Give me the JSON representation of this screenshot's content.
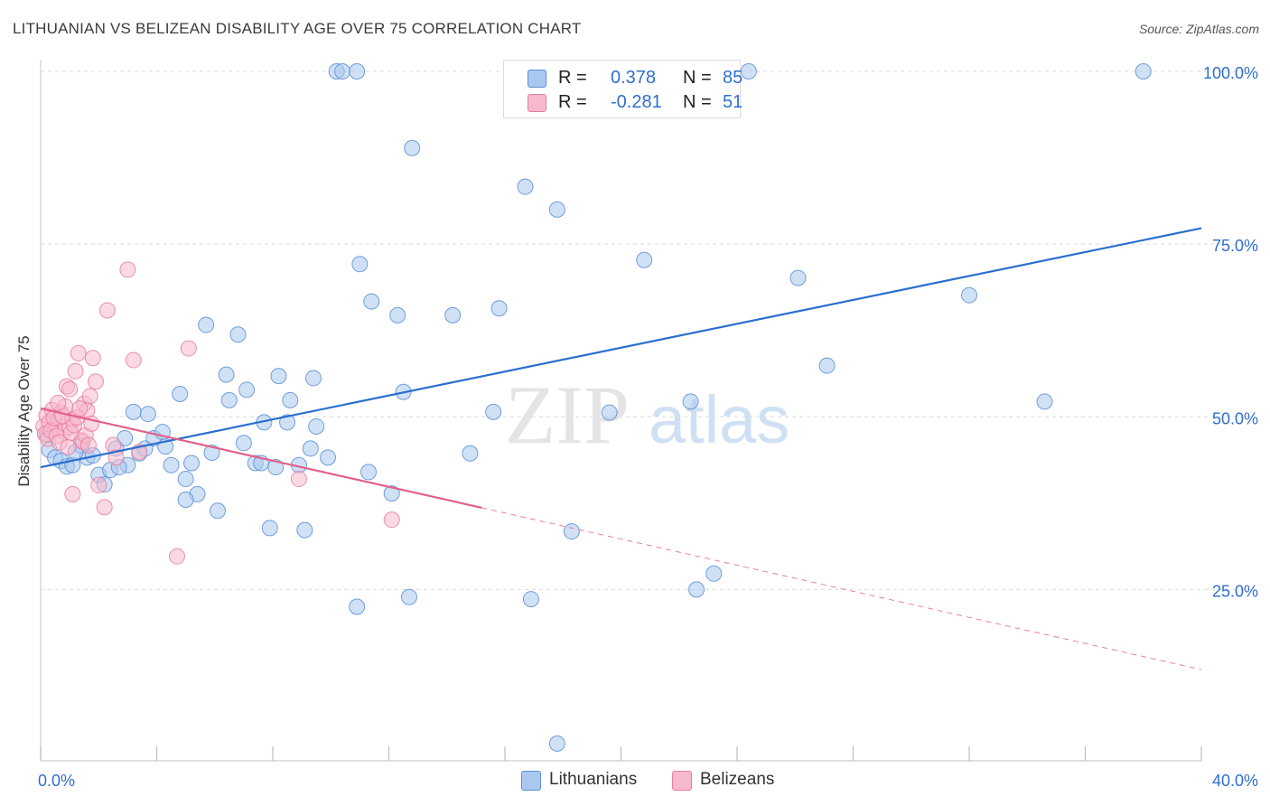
{
  "header": {
    "title": "LITHUANIAN VS BELIZEAN DISABILITY AGE OVER 75 CORRELATION CHART",
    "source": "Source: ZipAtlas.com"
  },
  "legend": {
    "rows": [
      {
        "r_label": "R =",
        "r_value": "0.378",
        "n_label": "N =",
        "n_value": "85"
      },
      {
        "r_label": "R =",
        "r_value": "-0.281",
        "n_label": "N =",
        "n_value": "51"
      }
    ]
  },
  "bottom_legend": [
    "Lithuanians",
    "Belizeans"
  ],
  "watermark": {
    "zip": "ZIP",
    "atlas": "atlas"
  },
  "colors": {
    "blue_fill": "#aac8ef",
    "blue_stroke": "#5b8fd6",
    "blue_line": "#2a6fce",
    "pink_fill": "#f7b9cc",
    "pink_stroke": "#e77ea0",
    "pink_line": "#e3608a",
    "axis_text": "#2f6fcf",
    "grid": "#dcdcdc"
  },
  "chart_data": {
    "type": "scatter",
    "title": "LITHUANIAN VS BELIZEAN DISABILITY AGE OVER 75 CORRELATION CHART",
    "xlabel": "",
    "ylabel": "Disability Age Over 75",
    "xlim": [
      0,
      40
    ],
    "ylim": [
      0,
      104
    ],
    "x_tick_labels": [
      "0.0%",
      "40.0%"
    ],
    "y_ticks": [
      25,
      50,
      75,
      100
    ],
    "y_tick_labels": [
      "25.0%",
      "50.0%",
      "75.0%",
      "100.0%"
    ],
    "grid": true,
    "legend_position": "top-center",
    "series": [
      {
        "name": "Lithuanians",
        "r": 0.378,
        "n": 85,
        "trend": {
          "x": [
            0,
            40
          ],
          "y": [
            42.7,
            77.3
          ],
          "dashed_from_x": null
        },
        "points": [
          [
            0.3,
            45.2
          ],
          [
            0.5,
            44.1
          ],
          [
            0.7,
            43.6
          ],
          [
            0.9,
            42.8
          ],
          [
            1.1,
            43.0
          ],
          [
            1.4,
            45.8
          ],
          [
            1.6,
            44.1
          ],
          [
            1.8,
            44.4
          ],
          [
            2.0,
            41.6
          ],
          [
            2.2,
            40.2
          ],
          [
            2.4,
            42.3
          ],
          [
            2.6,
            45.4
          ],
          [
            2.9,
            46.9
          ],
          [
            3.0,
            43.0
          ],
          [
            3.2,
            50.7
          ],
          [
            3.4,
            44.7
          ],
          [
            3.6,
            45.4
          ],
          [
            3.7,
            50.4
          ],
          [
            3.9,
            46.9
          ],
          [
            4.2,
            47.8
          ],
          [
            4.3,
            45.7
          ],
          [
            4.5,
            43.0
          ],
          [
            4.8,
            53.3
          ],
          [
            5.0,
            41.0
          ],
          [
            5.2,
            43.3
          ],
          [
            5.4,
            38.8
          ],
          [
            5.7,
            63.3
          ],
          [
            5.9,
            44.8
          ],
          [
            6.1,
            36.4
          ],
          [
            6.4,
            56.1
          ],
          [
            6.5,
            52.4
          ],
          [
            6.8,
            61.9
          ],
          [
            7.0,
            46.2
          ],
          [
            7.1,
            53.9
          ],
          [
            7.4,
            43.3
          ],
          [
            7.6,
            43.3
          ],
          [
            7.7,
            49.2
          ],
          [
            7.9,
            33.9
          ],
          [
            8.1,
            42.7
          ],
          [
            8.2,
            55.9
          ],
          [
            8.5,
            49.2
          ],
          [
            8.6,
            52.4
          ],
          [
            8.9,
            43.0
          ],
          [
            9.1,
            33.6
          ],
          [
            9.3,
            45.4
          ],
          [
            9.4,
            55.6
          ],
          [
            9.5,
            48.6
          ],
          [
            9.9,
            44.1
          ],
          [
            10.2,
            100
          ],
          [
            10.4,
            100
          ],
          [
            10.9,
            100
          ],
          [
            10.9,
            22.5
          ],
          [
            11.0,
            72.1
          ],
          [
            11.3,
            42.0
          ],
          [
            11.4,
            66.7
          ],
          [
            12.1,
            38.9
          ],
          [
            12.3,
            64.7
          ],
          [
            12.5,
            53.6
          ],
          [
            12.7,
            23.9
          ],
          [
            12.8,
            88.9
          ],
          [
            14.2,
            64.7
          ],
          [
            14.8,
            44.7
          ],
          [
            15.6,
            50.7
          ],
          [
            15.8,
            65.7
          ],
          [
            16.7,
            83.3
          ],
          [
            16.9,
            23.6
          ],
          [
            17.8,
            80.0
          ],
          [
            17.8,
            2.7
          ],
          [
            18.3,
            33.4
          ],
          [
            19.6,
            50.6
          ],
          [
            20.8,
            72.7
          ],
          [
            22.0,
            100
          ],
          [
            22.4,
            52.2
          ],
          [
            22.6,
            25.0
          ],
          [
            23.2,
            27.3
          ],
          [
            24.4,
            100
          ],
          [
            26.1,
            70.1
          ],
          [
            27.1,
            57.4
          ],
          [
            32.0,
            67.6
          ],
          [
            34.6,
            52.2
          ],
          [
            38.0,
            100
          ],
          [
            0.2,
            47.4
          ],
          [
            1.2,
            44.9
          ],
          [
            2.7,
            42.7
          ],
          [
            5.0,
            38.0
          ]
        ]
      },
      {
        "name": "Belizeans",
        "r": -0.281,
        "n": 51,
        "trend": {
          "x": [
            0,
            40
          ],
          "y": [
            51.2,
            13.4
          ],
          "dashed_from_x": 15.2
        },
        "points": [
          [
            0.1,
            48.6
          ],
          [
            0.2,
            50.2
          ],
          [
            0.3,
            49.2
          ],
          [
            0.4,
            51.0
          ],
          [
            0.5,
            48.2
          ],
          [
            0.6,
            49.6
          ],
          [
            0.7,
            50.6
          ],
          [
            0.8,
            47.9
          ],
          [
            0.9,
            54.4
          ],
          [
            1.0,
            48.5
          ],
          [
            1.1,
            49.6
          ],
          [
            1.2,
            56.6
          ],
          [
            1.3,
            59.2
          ],
          [
            1.4,
            46.6
          ],
          [
            1.5,
            51.9
          ],
          [
            1.6,
            50.9
          ],
          [
            1.7,
            53.0
          ],
          [
            1.8,
            58.5
          ],
          [
            1.9,
            55.1
          ],
          [
            2.0,
            40.1
          ],
          [
            2.2,
            36.9
          ],
          [
            2.3,
            65.4
          ],
          [
            2.5,
            45.9
          ],
          [
            2.6,
            44.1
          ],
          [
            3.0,
            71.3
          ],
          [
            3.2,
            58.2
          ],
          [
            3.4,
            44.9
          ],
          [
            4.7,
            29.8
          ],
          [
            5.1,
            59.9
          ],
          [
            8.9,
            41.0
          ],
          [
            12.1,
            35.1
          ],
          [
            0.15,
            47.5
          ],
          [
            0.25,
            46.8
          ],
          [
            0.35,
            48.0
          ],
          [
            0.45,
            49.8
          ],
          [
            0.55,
            47.2
          ],
          [
            0.65,
            46.3
          ],
          [
            0.75,
            50.1
          ],
          [
            0.85,
            51.5
          ],
          [
            0.95,
            45.6
          ],
          [
            1.05,
            47.7
          ],
          [
            1.15,
            48.8
          ],
          [
            1.25,
            49.9
          ],
          [
            1.35,
            51.2
          ],
          [
            1.45,
            46.4
          ],
          [
            1.55,
            47.3
          ],
          [
            1.65,
            45.9
          ],
          [
            1.75,
            49.0
          ],
          [
            1.1,
            38.8
          ],
          [
            0.6,
            52.0
          ],
          [
            1.0,
            54.0
          ]
        ]
      }
    ]
  }
}
